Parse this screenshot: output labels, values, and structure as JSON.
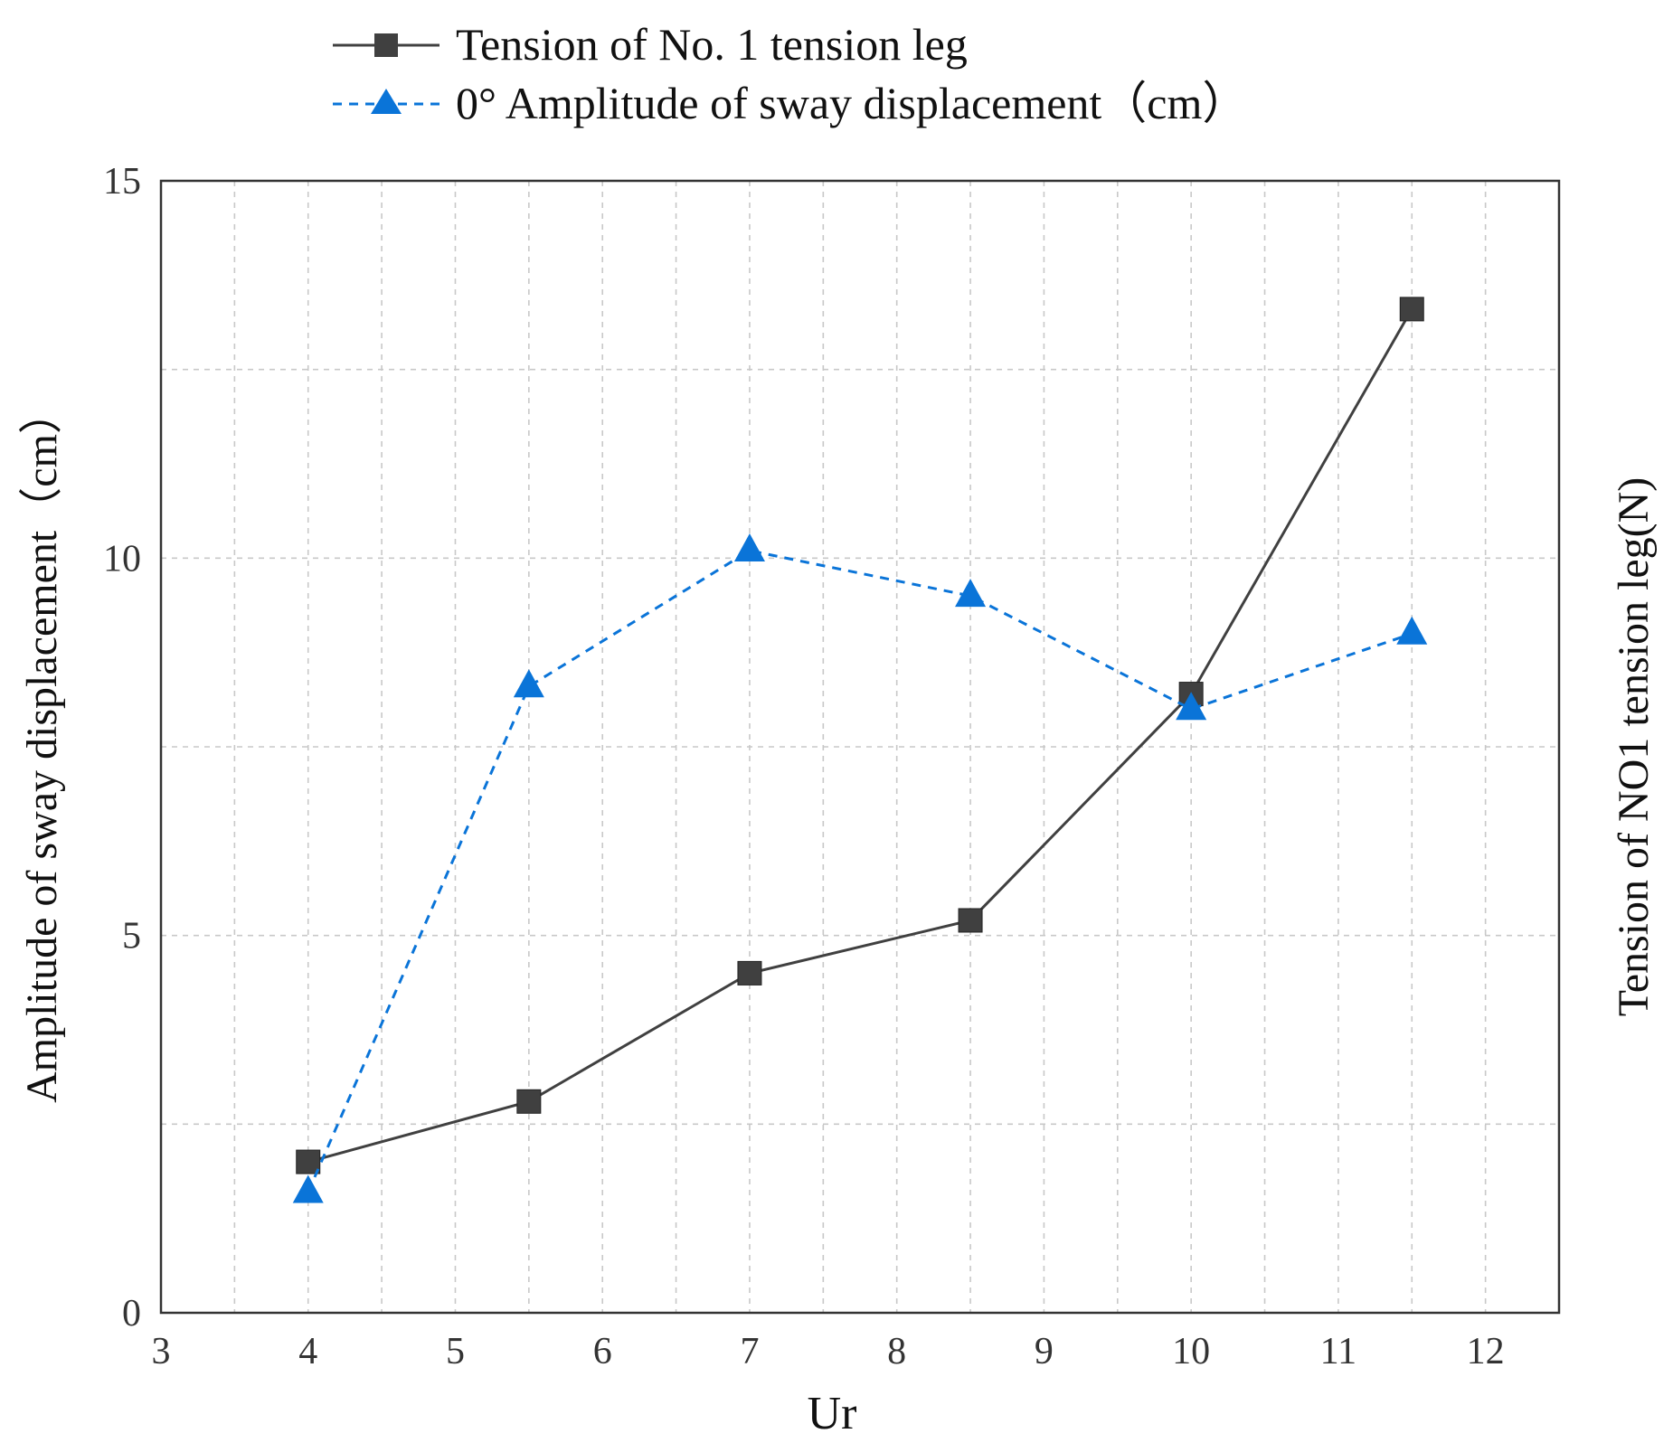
{
  "chart_data": {
    "type": "line",
    "title": "",
    "xlabel": "Ur",
    "ylabel": "Amplitude of sway displacement（cm）",
    "ylabel_right": "Tension of NO1 tension leg(N)",
    "xlim": [
      3,
      12.5
    ],
    "ylim": [
      0,
      15
    ],
    "x_ticks": [
      3,
      4,
      5,
      6,
      7,
      8,
      9,
      10,
      11,
      12
    ],
    "y_ticks": [
      0,
      5,
      10,
      15
    ],
    "grid": true,
    "legend_position": "top-center",
    "x": [
      4,
      5.5,
      7,
      8.5,
      10,
      11.5
    ],
    "series": [
      {
        "name": "Tension of No. 1 tension leg",
        "values": [
          2.0,
          2.8,
          4.5,
          5.2,
          8.2,
          13.3
        ],
        "color": "#404040",
        "marker": "square",
        "line_style": "solid"
      },
      {
        "name": "0° Amplitude of sway displacement（cm）",
        "values": [
          1.6,
          8.3,
          10.1,
          9.5,
          8.0,
          9.0
        ],
        "color": "#0a74d8",
        "marker": "triangle",
        "line_style": "dashed"
      }
    ]
  }
}
